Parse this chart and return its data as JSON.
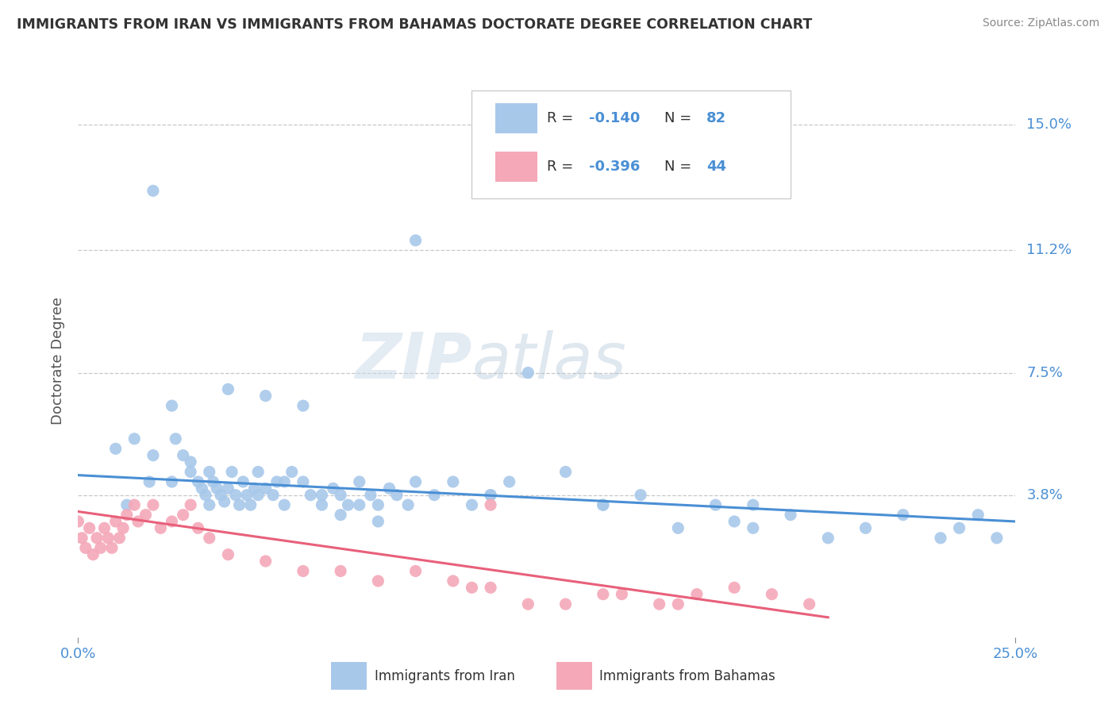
{
  "title": "IMMIGRANTS FROM IRAN VS IMMIGRANTS FROM BAHAMAS DOCTORATE DEGREE CORRELATION CHART",
  "source": "Source: ZipAtlas.com",
  "ylabel": "Doctorate Degree",
  "ytick_labels": [
    "3.8%",
    "7.5%",
    "11.2%",
    "15.0%"
  ],
  "ytick_values": [
    0.038,
    0.075,
    0.112,
    0.15
  ],
  "xlim": [
    0.0,
    0.25
  ],
  "ylim": [
    -0.005,
    0.162
  ],
  "legend1_R": "R = ",
  "legend1_Rval": "-0.140",
  "legend1_N": "N = ",
  "legend1_Nval": "82",
  "legend2_R": "R = ",
  "legend2_Rval": "-0.396",
  "legend2_N": "N = ",
  "legend2_Nval": "44",
  "color_iran": "#a8c8ea",
  "color_bahamas": "#f4a8b8",
  "color_iran_line": "#4a8fd4",
  "color_bahamas_line": "#e8607a",
  "color_text_blue": "#4a8fd4",
  "iran_scatter_x": [
    0.02,
    0.015,
    0.025,
    0.03,
    0.01,
    0.02,
    0.025,
    0.028,
    0.03,
    0.032,
    0.033,
    0.034,
    0.035,
    0.036,
    0.037,
    0.038,
    0.039,
    0.04,
    0.041,
    0.042,
    0.043,
    0.044,
    0.045,
    0.046,
    0.047,
    0.048,
    0.05,
    0.052,
    0.053,
    0.055,
    0.057,
    0.06,
    0.062,
    0.065,
    0.068,
    0.07,
    0.072,
    0.075,
    0.078,
    0.08,
    0.083,
    0.085,
    0.088,
    0.09,
    0.095,
    0.1,
    0.105,
    0.11,
    0.115,
    0.12,
    0.13,
    0.14,
    0.15,
    0.16,
    0.17,
    0.175,
    0.18,
    0.19,
    0.2,
    0.21,
    0.22,
    0.23,
    0.235,
    0.24,
    0.245,
    0.013,
    0.019,
    0.026,
    0.035,
    0.048,
    0.055,
    0.065,
    0.075,
    0.09,
    0.11,
    0.14,
    0.18,
    0.04,
    0.05,
    0.06,
    0.07,
    0.08
  ],
  "iran_scatter_y": [
    0.13,
    0.055,
    0.065,
    0.048,
    0.052,
    0.05,
    0.042,
    0.05,
    0.045,
    0.042,
    0.04,
    0.038,
    0.045,
    0.042,
    0.04,
    0.038,
    0.036,
    0.04,
    0.045,
    0.038,
    0.035,
    0.042,
    0.038,
    0.035,
    0.04,
    0.045,
    0.04,
    0.038,
    0.042,
    0.035,
    0.045,
    0.042,
    0.038,
    0.035,
    0.04,
    0.038,
    0.035,
    0.042,
    0.038,
    0.035,
    0.04,
    0.038,
    0.035,
    0.042,
    0.038,
    0.042,
    0.035,
    0.038,
    0.042,
    0.075,
    0.045,
    0.035,
    0.038,
    0.028,
    0.035,
    0.03,
    0.028,
    0.032,
    0.025,
    0.028,
    0.032,
    0.025,
    0.028,
    0.032,
    0.025,
    0.035,
    0.042,
    0.055,
    0.035,
    0.038,
    0.042,
    0.038,
    0.035,
    0.115,
    0.038,
    0.035,
    0.035,
    0.07,
    0.068,
    0.065,
    0.032,
    0.03
  ],
  "bahamas_scatter_x": [
    0.0,
    0.001,
    0.002,
    0.003,
    0.004,
    0.005,
    0.006,
    0.007,
    0.008,
    0.009,
    0.01,
    0.011,
    0.012,
    0.013,
    0.015,
    0.016,
    0.018,
    0.02,
    0.022,
    0.025,
    0.028,
    0.03,
    0.032,
    0.035,
    0.04,
    0.05,
    0.06,
    0.07,
    0.08,
    0.09,
    0.1,
    0.105,
    0.11,
    0.13,
    0.145,
    0.155,
    0.165,
    0.175,
    0.185,
    0.195,
    0.14,
    0.16,
    0.12,
    0.11
  ],
  "bahamas_scatter_y": [
    0.03,
    0.025,
    0.022,
    0.028,
    0.02,
    0.025,
    0.022,
    0.028,
    0.025,
    0.022,
    0.03,
    0.025,
    0.028,
    0.032,
    0.035,
    0.03,
    0.032,
    0.035,
    0.028,
    0.03,
    0.032,
    0.035,
    0.028,
    0.025,
    0.02,
    0.018,
    0.015,
    0.015,
    0.012,
    0.015,
    0.012,
    0.01,
    0.01,
    0.005,
    0.008,
    0.005,
    0.008,
    0.01,
    0.008,
    0.005,
    0.008,
    0.005,
    0.005,
    0.035
  ],
  "iran_line_x": [
    0.0,
    0.25
  ],
  "iran_line_y": [
    0.044,
    0.03
  ],
  "bahamas_line_x": [
    0.0,
    0.2
  ],
  "bahamas_line_y": [
    0.033,
    0.001
  ],
  "watermark_zip": "ZIP",
  "watermark_atlas": "atlas",
  "background_color": "#ffffff",
  "grid_color": "#c8c8c8",
  "bottom_legend_iran": "Immigrants from Iran",
  "bottom_legend_bahamas": "Immigrants from Bahamas"
}
